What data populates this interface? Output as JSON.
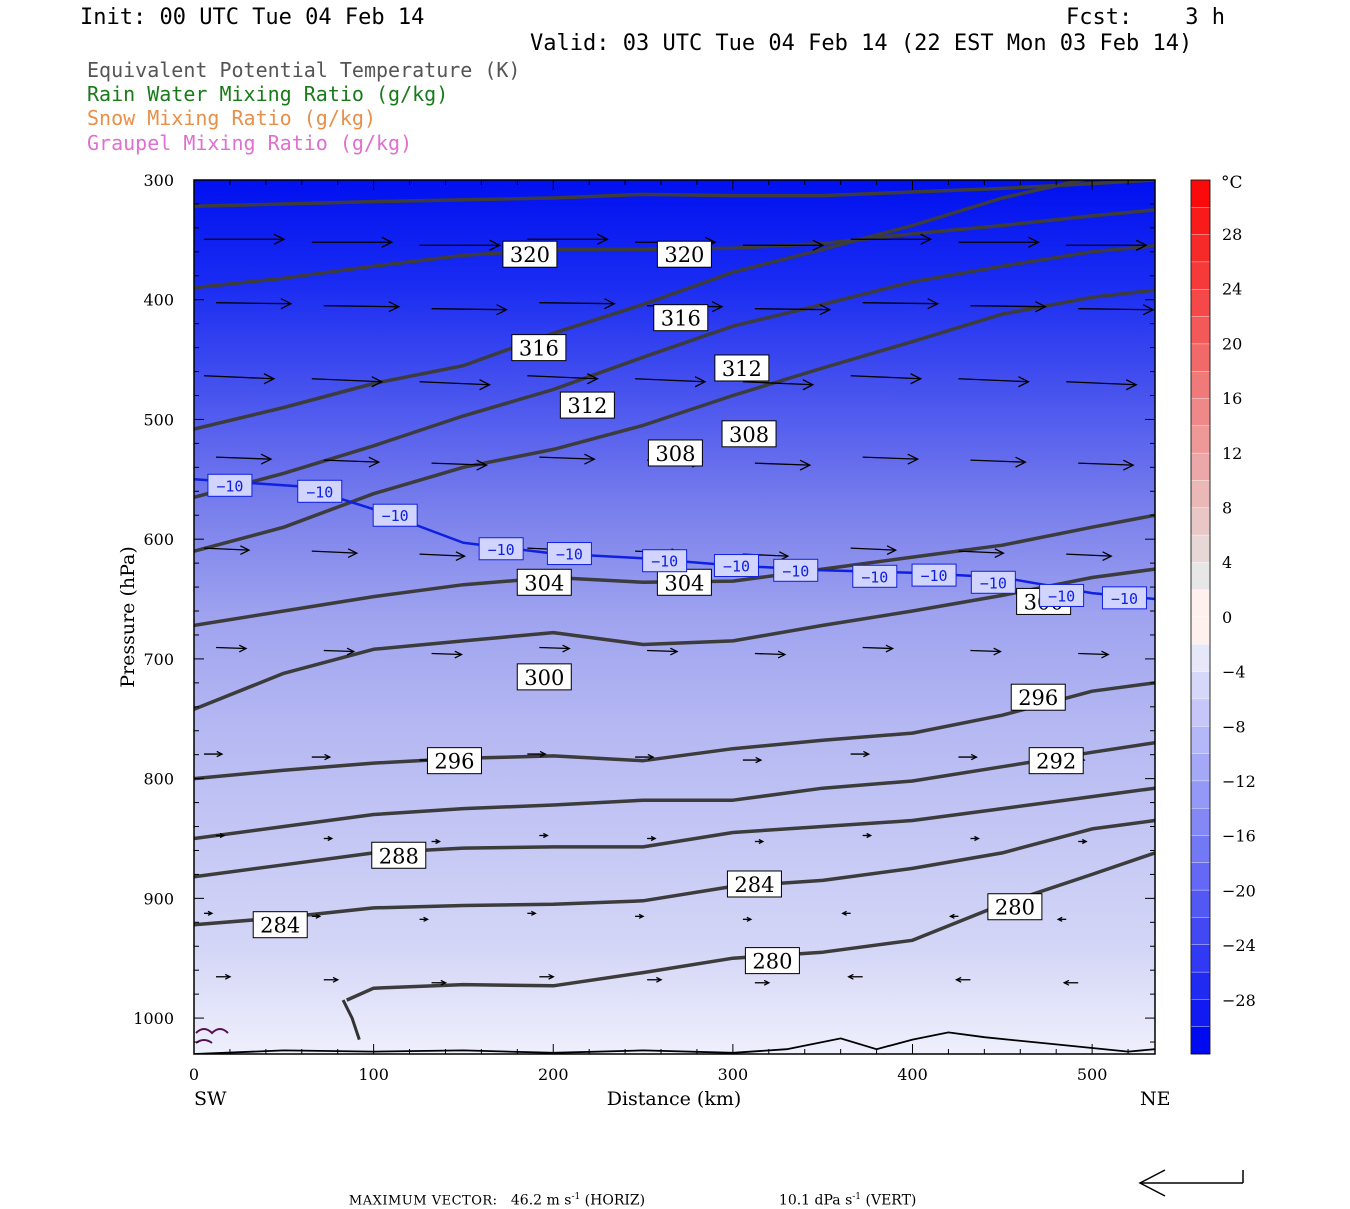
{
  "header": {
    "init": "Init: 00 UTC Tue 04 Feb 14",
    "fcst": "Fcst:    3 h",
    "valid": "Valid: 03 UTC Tue 04 Feb 14 (22 EST Mon 03 Feb 14)"
  },
  "legend": [
    {
      "label": "Equivalent Potential Temperature (K)",
      "color": "#555555"
    },
    {
      "label": "Rain Water Mixing Ratio (g/kg)",
      "color": "#1a7a1a"
    },
    {
      "label": "Snow Mixing Ratio (g/kg)",
      "color": "#e8904a"
    },
    {
      "label": "Graupel Mixing Ratio (g/kg)",
      "color": "#e070d0"
    }
  ],
  "footer": {
    "max_vector_label": "MAXIMUM VECTOR:",
    "horiz_value": "46.2",
    "horiz_unit": "m s",
    "horiz_exp": "-1",
    "horiz_tag": "(HORIZ)",
    "vert_value": "10.1",
    "vert_unit": "dPa s",
    "vert_exp": "-1",
    "vert_tag": "(VERT)"
  },
  "chart_data": {
    "type": "cross-section",
    "xlabel": "Distance (km)",
    "ylabel": "Pressure (hPa)",
    "xlim": [
      0,
      535
    ],
    "ylim": [
      300,
      1030
    ],
    "x_ticks": [
      0,
      100,
      200,
      300,
      400,
      500
    ],
    "y_ticks": [
      300,
      400,
      500,
      600,
      700,
      800,
      900,
      1000
    ],
    "x_end_labels": {
      "left": "SW",
      "right": "NE"
    },
    "colorbar": {
      "unit": "°C",
      "labels": [
        "28",
        "24",
        "20",
        "16",
        "12",
        "8",
        "4",
        "0",
        "−4",
        "−8",
        "−12",
        "−16",
        "−20",
        "−24",
        "−28"
      ],
      "levels": [
        28,
        24,
        20,
        16,
        12,
        8,
        4,
        0,
        -4,
        -8,
        -12,
        -16,
        -20,
        -24,
        -28
      ]
    },
    "theta_e_contours": [
      {
        "value": 320,
        "label": "320",
        "points": [
          [
            0,
            322
          ],
          [
            100,
            318
          ],
          [
            200,
            315
          ],
          [
            250,
            312
          ],
          [
            300,
            313
          ],
          [
            350,
            313
          ],
          [
            400,
            310
          ],
          [
            450,
            307
          ],
          [
            500,
            303
          ],
          [
            535,
            300
          ]
        ]
      },
      {
        "value": 316,
        "label": "316",
        "points": [
          [
            0,
            390
          ],
          [
            50,
            382
          ],
          [
            100,
            372
          ],
          [
            150,
            363
          ],
          [
            200,
            358
          ],
          [
            250,
            358
          ],
          [
            300,
            357
          ],
          [
            350,
            353
          ],
          [
            400,
            345
          ],
          [
            450,
            338
          ],
          [
            500,
            330
          ],
          [
            535,
            325
          ]
        ]
      },
      {
        "value": 312,
        "label": "312",
        "points": [
          [
            0,
            508
          ],
          [
            50,
            490
          ],
          [
            100,
            470
          ],
          [
            150,
            455
          ],
          [
            200,
            428
          ],
          [
            250,
            404
          ],
          [
            300,
            377
          ],
          [
            350,
            358
          ],
          [
            400,
            338
          ],
          [
            450,
            315
          ],
          [
            500,
            298
          ],
          [
            535,
            290
          ]
        ]
      },
      {
        "value": 308,
        "label": "308",
        "points": [
          [
            0,
            565
          ],
          [
            50,
            545
          ],
          [
            100,
            522
          ],
          [
            150,
            497
          ],
          [
            200,
            475
          ],
          [
            250,
            448
          ],
          [
            300,
            422
          ],
          [
            350,
            404
          ],
          [
            400,
            385
          ],
          [
            450,
            372
          ],
          [
            500,
            360
          ],
          [
            535,
            355
          ]
        ]
      },
      {
        "value": 304,
        "label": "304",
        "points": [
          [
            0,
            610
          ],
          [
            50,
            590
          ],
          [
            100,
            562
          ],
          [
            150,
            540
          ],
          [
            200,
            525
          ],
          [
            250,
            505
          ],
          [
            300,
            480
          ],
          [
            350,
            457
          ],
          [
            400,
            435
          ],
          [
            450,
            412
          ],
          [
            500,
            398
          ],
          [
            535,
            392
          ]
        ]
      },
      {
        "value": 300,
        "label": "300",
        "points": [
          [
            0,
            672
          ],
          [
            50,
            660
          ],
          [
            100,
            648
          ],
          [
            150,
            638
          ],
          [
            200,
            632
          ],
          [
            250,
            636
          ],
          [
            300,
            635
          ],
          [
            350,
            625
          ],
          [
            400,
            615
          ],
          [
            450,
            605
          ],
          [
            500,
            590
          ],
          [
            535,
            580
          ]
        ]
      },
      {
        "value": 296,
        "label": "296",
        "points": [
          [
            0,
            742
          ],
          [
            50,
            712
          ],
          [
            100,
            692
          ],
          [
            150,
            685
          ],
          [
            200,
            678
          ],
          [
            250,
            688
          ],
          [
            300,
            685
          ],
          [
            350,
            672
          ],
          [
            400,
            660
          ],
          [
            450,
            647
          ],
          [
            500,
            632
          ],
          [
            535,
            625
          ]
        ]
      },
      {
        "value": 292,
        "label": "292",
        "points": [
          [
            0,
            800
          ],
          [
            50,
            793
          ],
          [
            100,
            787
          ],
          [
            150,
            783
          ],
          [
            200,
            781
          ],
          [
            250,
            785
          ],
          [
            300,
            775
          ],
          [
            350,
            768
          ],
          [
            400,
            762
          ],
          [
            450,
            747
          ],
          [
            500,
            727
          ],
          [
            535,
            720
          ]
        ]
      },
      {
        "value": 288,
        "label": "288",
        "points": [
          [
            0,
            850
          ],
          [
            50,
            840
          ],
          [
            100,
            830
          ],
          [
            150,
            825
          ],
          [
            200,
            822
          ],
          [
            250,
            818
          ],
          [
            300,
            818
          ],
          [
            350,
            808
          ],
          [
            400,
            802
          ],
          [
            450,
            790
          ],
          [
            500,
            778
          ],
          [
            535,
            770
          ]
        ]
      },
      {
        "value": 284,
        "label": "284",
        "points": [
          [
            0,
            882
          ],
          [
            50,
            872
          ],
          [
            100,
            862
          ],
          [
            150,
            858
          ],
          [
            200,
            857
          ],
          [
            250,
            857
          ],
          [
            300,
            845
          ],
          [
            350,
            840
          ],
          [
            400,
            835
          ],
          [
            450,
            825
          ],
          [
            500,
            815
          ],
          [
            535,
            808
          ]
        ]
      },
      {
        "value": 280,
        "label": "280",
        "points": [
          [
            0,
            922
          ],
          [
            50,
            916
          ],
          [
            100,
            908
          ],
          [
            150,
            906
          ],
          [
            200,
            905
          ],
          [
            250,
            902
          ],
          [
            300,
            890
          ],
          [
            350,
            885
          ],
          [
            400,
            875
          ],
          [
            450,
            862
          ],
          [
            500,
            842
          ],
          [
            535,
            835
          ]
        ]
      },
      {
        "value": 276,
        "label": "",
        "points": [
          [
            85,
            985
          ],
          [
            100,
            975
          ],
          [
            150,
            972
          ],
          [
            200,
            973
          ],
          [
            250,
            962
          ],
          [
            300,
            950
          ],
          [
            350,
            945
          ],
          [
            400,
            935
          ],
          [
            450,
            905
          ],
          [
            500,
            880
          ],
          [
            535,
            862
          ]
        ]
      }
    ],
    "isotherm_minus10": {
      "value": -10,
      "label": "−10",
      "points": [
        [
          0,
          550
        ],
        [
          60,
          556
        ],
        [
          100,
          575
        ],
        [
          150,
          603
        ],
        [
          200,
          612
        ],
        [
          250,
          616
        ],
        [
          300,
          622
        ],
        [
          350,
          626
        ],
        [
          400,
          628
        ],
        [
          450,
          632
        ],
        [
          500,
          645
        ],
        [
          535,
          650
        ]
      ]
    },
    "contour_label_positions_km": [
      {
        "text": "320",
        "x": 187,
        "p": 362
      },
      {
        "text": "320",
        "x": 273,
        "p": 362
      },
      {
        "text": "316",
        "x": 192,
        "p": 440
      },
      {
        "text": "316",
        "x": 271,
        "p": 415
      },
      {
        "text": "312",
        "x": 219,
        "p": 488
      },
      {
        "text": "312",
        "x": 305,
        "p": 457
      },
      {
        "text": "308",
        "x": 268,
        "p": 528
      },
      {
        "text": "308",
        "x": 309,
        "p": 512
      },
      {
        "text": "304",
        "x": 195,
        "p": 636
      },
      {
        "text": "304",
        "x": 273,
        "p": 636
      },
      {
        "text": "300",
        "x": 195,
        "p": 715
      },
      {
        "text": "300",
        "x": 473,
        "p": 652
      },
      {
        "text": "296",
        "x": 145,
        "p": 785
      },
      {
        "text": "296",
        "x": 470,
        "p": 732
      },
      {
        "text": "292",
        "x": 480,
        "p": 785
      },
      {
        "text": "288",
        "x": 114,
        "p": 864
      },
      {
        "text": "284",
        "x": 48,
        "p": 922
      },
      {
        "text": "284",
        "x": 312,
        "p": 888
      },
      {
        "text": "280",
        "x": 322,
        "p": 952
      },
      {
        "text": "280",
        "x": 457,
        "p": 907
      }
    ],
    "isotherm_label_positions_km": [
      [
        20,
        555
      ],
      [
        70,
        560
      ],
      [
        112,
        580
      ],
      [
        171,
        608
      ],
      [
        209,
        612
      ],
      [
        262,
        618
      ],
      [
        302,
        622
      ],
      [
        335,
        626
      ],
      [
        379,
        631
      ],
      [
        412,
        630
      ],
      [
        445,
        636
      ],
      [
        483,
        647
      ],
      [
        518,
        649
      ]
    ]
  }
}
